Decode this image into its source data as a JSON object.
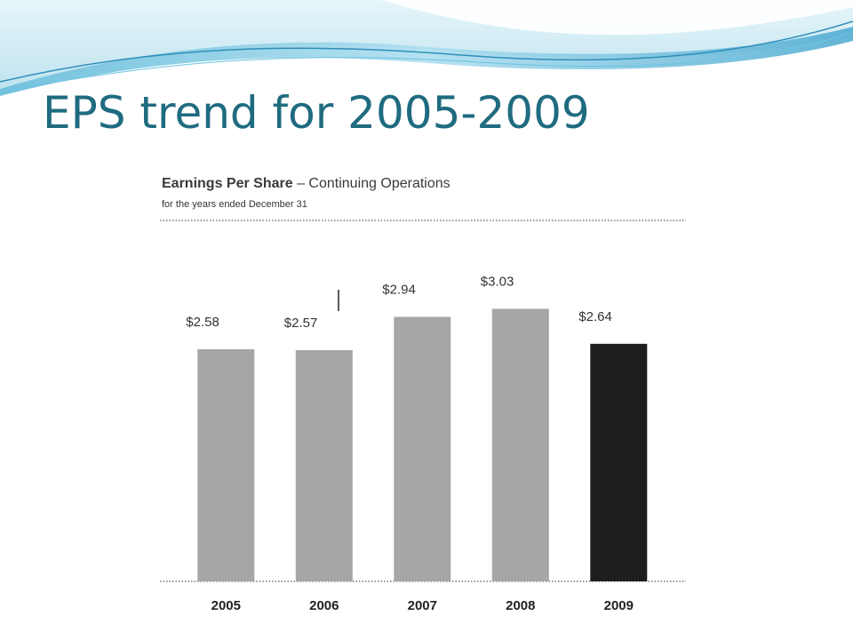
{
  "slide": {
    "title": "EPS trend for 2005-2009"
  },
  "colors": {
    "title": "#1f6b80",
    "bar_default": "#a6a6a8",
    "bar_highlight": "#1e1e1e",
    "swoosh_light": "#bfe6f2",
    "swoosh_mid": "#7ccbe4",
    "swoosh_dark": "#3d9fc6"
  },
  "chart_data": {
    "type": "bar",
    "title_bold": "Earnings Per Share",
    "title_separator": " – ",
    "title_rest": "Continuing Operations",
    "subtitle": "for the years ended December 31",
    "categories": [
      "2005",
      "2006",
      "2007",
      "2008",
      "2009"
    ],
    "values": [
      2.58,
      2.57,
      2.94,
      3.03,
      2.64
    ],
    "data_labels": [
      "$2.58",
      "$2.57",
      "$2.94",
      "$3.03",
      "$2.64"
    ],
    "highlight_index": 4,
    "xlabel": "",
    "ylabel": "",
    "ylim": [
      0,
      3.35
    ],
    "grid": false,
    "legend": "none"
  }
}
